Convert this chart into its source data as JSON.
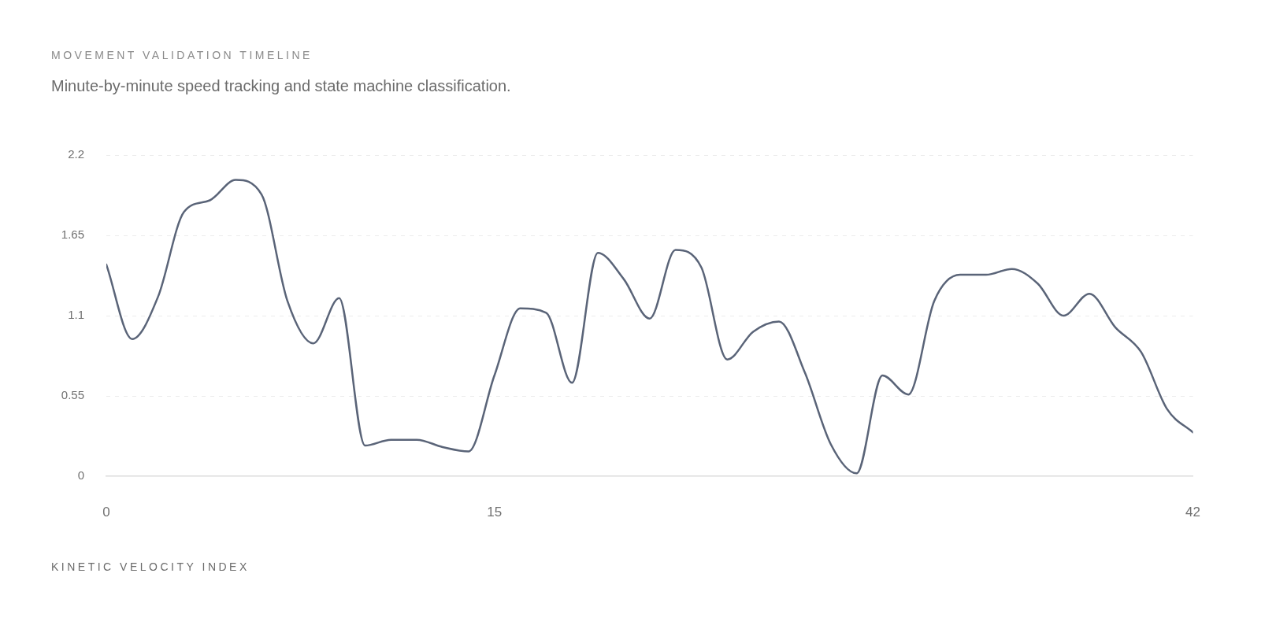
{
  "chart_data": {
    "type": "line",
    "title": "MOVEMENT VALIDATION TIMELINE",
    "subtitle": "Minute-by-minute speed tracking and state machine classification.",
    "xlabel": "KINETIC VELOCITY INDEX",
    "x": [
      0,
      1,
      2,
      3,
      4,
      5,
      6,
      7,
      8,
      9,
      10,
      11,
      12,
      13,
      14,
      15,
      16,
      17,
      18,
      19,
      20,
      21,
      22,
      23,
      24,
      25,
      26,
      27,
      28,
      29,
      30,
      31,
      32,
      33,
      34,
      35,
      36,
      37,
      38,
      39,
      40,
      41,
      42
    ],
    "series": [
      {
        "color": "#5a6478",
        "values": [
          1.45,
          0.94,
          1.23,
          1.81,
          1.89,
          2.03,
          1.93,
          1.2,
          0.91,
          1.22,
          0.21,
          0.25,
          0.25,
          0.2,
          0.17,
          0.69,
          1.15,
          1.12,
          0.64,
          1.53,
          1.35,
          1.08,
          1.55,
          1.43,
          0.8,
          0.99,
          1.06,
          0.71,
          0.22,
          0.02,
          0.69,
          0.56,
          1.2,
          1.38,
          1.38,
          1.42,
          1.32,
          1.1,
          1.25,
          1.02,
          0.85,
          0.46,
          0.3
        ]
      }
    ],
    "xlim": [
      0,
      42
    ],
    "xticks": [
      0,
      15,
      42
    ],
    "ylim": [
      0,
      2.2
    ],
    "yticks": [
      0,
      0.55,
      1.1,
      1.65,
      2.2
    ],
    "grid": "y",
    "legend": false,
    "marker": "none",
    "line_style": "solid"
  }
}
